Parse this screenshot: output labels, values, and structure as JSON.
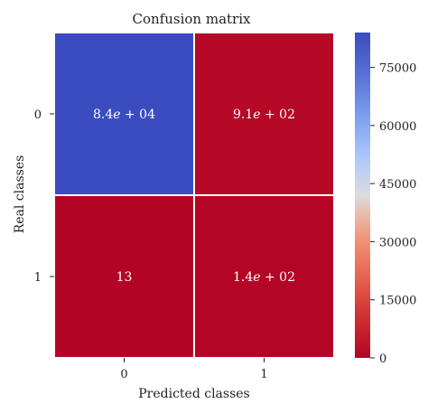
{
  "chart_data": {
    "type": "heatmap",
    "title": "Confusion matrix",
    "xlabel": "Predicted classes",
    "ylabel": "Real classes",
    "x_categories": [
      "0",
      "1"
    ],
    "y_categories": [
      "0",
      "1"
    ],
    "values": [
      [
        84000,
        910
      ],
      [
        13,
        140
      ]
    ],
    "annotations": [
      [
        "8.4e + 04",
        "9.1e + 02"
      ],
      [
        "13",
        "1.4e + 02"
      ]
    ],
    "colormap": "coolwarm_r",
    "vmin": 0,
    "vmax": 84000,
    "colorbar_ticks": [
      0,
      15000,
      30000,
      45000,
      60000,
      75000
    ],
    "colorbar_tick_labels": [
      "0",
      "15000",
      "30000",
      "45000",
      "60000",
      "75000"
    ],
    "colors": {
      "low": "#b40426",
      "mid": "#dddcdc",
      "high": "#3b4cc0",
      "cell_border": "#ffffff"
    }
  }
}
